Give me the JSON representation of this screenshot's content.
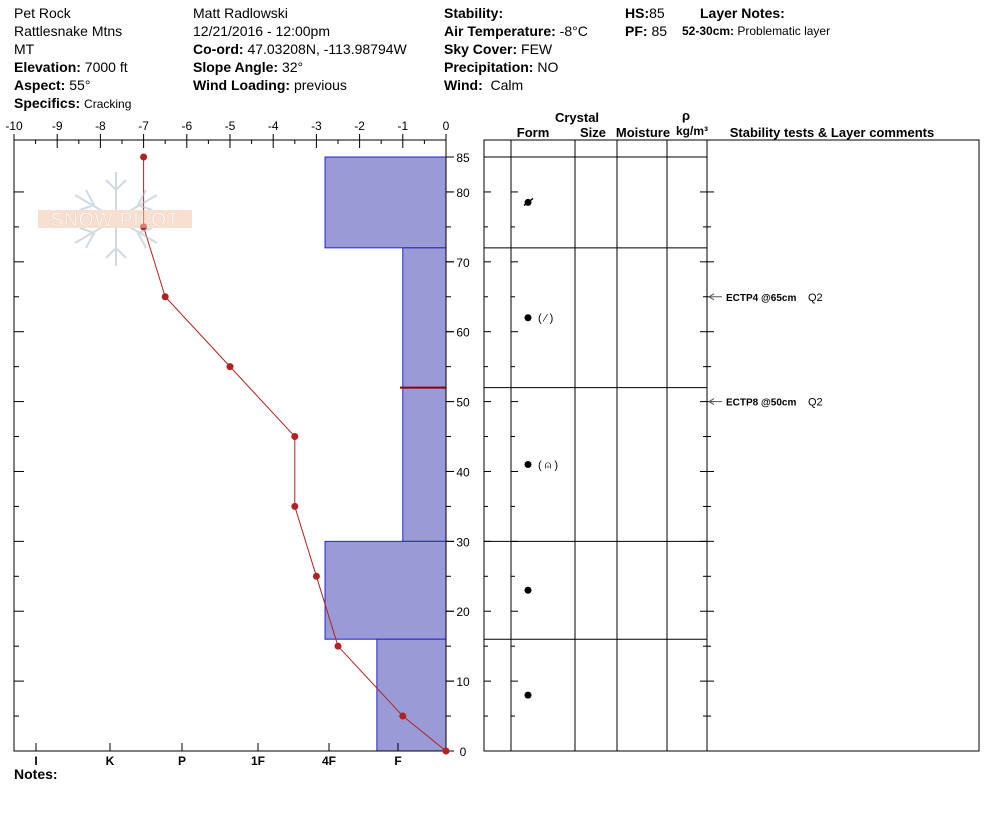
{
  "site": {
    "location": "Pet Rock",
    "range": "Rattlesnake Mtns",
    "state": "MT",
    "elevation_label": "Elevation:",
    "elevation_value": "7000 ft",
    "aspect_label": "Aspect:",
    "aspect_value": "55°",
    "specifics_label": "Specifics:",
    "specifics_value": "Cracking"
  },
  "observer": {
    "name": "Matt Radlowski",
    "datetime": "12/21/2016 - 12:00pm",
    "coord_label": "Co-ord:",
    "coord_value": "47.03208N, -113.98794W",
    "slope_label": "Slope Angle:",
    "slope_value": "32°",
    "wind_loading_label": "Wind Loading:",
    "wind_loading_value": "previous"
  },
  "conditions": {
    "stability_label": "Stability:",
    "stability_value": "",
    "air_temp_label": "Air Temperature:",
    "air_temp_value": "-8°C",
    "sky_label": "Sky Cover:",
    "sky_value": "FEW",
    "precip_label": "Precipitation:",
    "precip_value": "NO",
    "wind_label": "Wind:",
    "wind_value": "Calm"
  },
  "depths": {
    "hs_label": "HS:",
    "hs_value": "85",
    "pf_label": "PF:",
    "pf_value": "85"
  },
  "layer_notes": {
    "title": "Layer Notes:",
    "range": "52-30cm:",
    "text": "Problematic layer"
  },
  "notes_label": "Notes:",
  "logo_text": "SNOW PILOT",
  "columns": {
    "crystal": "Crystal",
    "form": "Form",
    "size": "Size",
    "moisture": "Moisture",
    "rho": "ρ",
    "density_unit": "kg/m³",
    "stability": "Stability tests & Layer comments"
  },
  "colors": {
    "hardness_fill": "#9a9ad6",
    "hardness_edge": "#2222cc",
    "temp_line": "#b22222",
    "weak_layer": "#8b0000"
  },
  "chart_data": {
    "type": "line",
    "temperature": {
      "x_ticks": [
        "-10",
        "-9",
        "-8",
        "-7",
        "-6",
        "-5",
        "-4",
        "-3",
        "-2",
        "-1",
        "0"
      ],
      "xlim": [
        -10,
        0
      ],
      "points": [
        {
          "depth": 85,
          "temp": -7
        },
        {
          "depth": 75,
          "temp": -7
        },
        {
          "depth": 65,
          "temp": -6.5
        },
        {
          "depth": 55,
          "temp": -5
        },
        {
          "depth": 45,
          "temp": -3.5
        },
        {
          "depth": 35,
          "temp": -3.5
        },
        {
          "depth": 25,
          "temp": -3
        },
        {
          "depth": 15,
          "temp": -2.5
        },
        {
          "depth": 5,
          "temp": -1
        },
        {
          "depth": 0,
          "temp": 0
        }
      ]
    },
    "depth_axis": {
      "ylim": [
        0,
        85
      ],
      "ticks": [
        "0",
        "10",
        "20",
        "30",
        "40",
        "50",
        "60",
        "70",
        "80",
        "85"
      ]
    },
    "hardness_axis": {
      "labels": [
        "I",
        "K",
        "P",
        "1F",
        "4F",
        "F"
      ]
    },
    "hardness_layers": [
      {
        "top": 85,
        "bottom": 72,
        "hardness": "4F"
      },
      {
        "top": 72,
        "bottom": 30,
        "hardness": "F"
      },
      {
        "top": 30,
        "bottom": 16,
        "hardness": "4F"
      },
      {
        "top": 16,
        "bottom": 0,
        "hardness": "F+"
      }
    ],
    "hardness_level": {
      "F": 1,
      "F+": 1.6,
      "4F": 2.8,
      "1F": 4.4,
      "P": 6.2,
      "K": 7.9,
      "I": 9.5
    },
    "weak_layer_depth": 52,
    "layer_boundaries": [
      85,
      72,
      52,
      30,
      16,
      0
    ],
    "grain_form_rows": [
      {
        "depth": 78.5,
        "symbol": "●",
        "secondary": "",
        "mark": "slash"
      },
      {
        "depth": 62,
        "symbol": "●",
        "secondary": "( ⁄ )"
      },
      {
        "depth": 41,
        "symbol": "●",
        "secondary": "( ⍝ )"
      },
      {
        "depth": 23,
        "symbol": "●",
        "secondary": ""
      },
      {
        "depth": 8,
        "symbol": "●",
        "secondary": ""
      }
    ],
    "stability_tests": [
      {
        "depth": 65,
        "label": "ECTP4 @65cm",
        "quality": "Q2"
      },
      {
        "depth": 50,
        "label": "ECTP8 @50cm",
        "quality": "Q2"
      }
    ]
  }
}
